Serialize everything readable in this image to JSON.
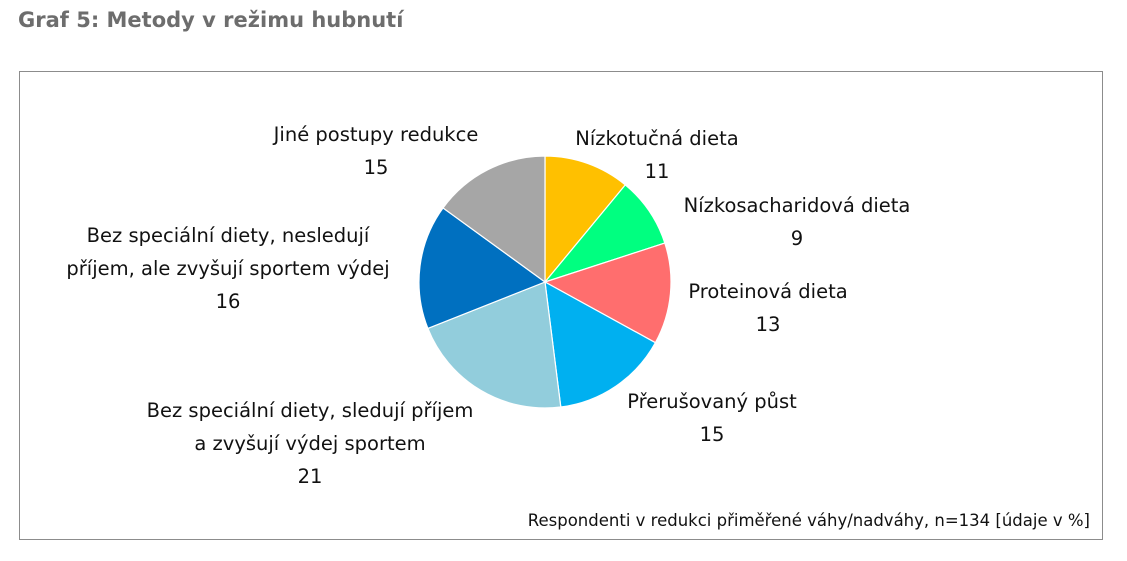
{
  "heading": "Graf 5: Metody v režimu hubnutí",
  "footnote": "Respondenti v redukci přiměřené váhy/nadváhy, n=134 [údaje v %]",
  "chart_data": {
    "type": "pie",
    "slices": [
      {
        "label_lines": [
          "Nízkotučná dieta"
        ],
        "value": 11,
        "color": "#FFC000"
      },
      {
        "label_lines": [
          "Nízkosacharidová dieta"
        ],
        "value": 9,
        "color": "#00FF80"
      },
      {
        "label_lines": [
          "Proteinová dieta"
        ],
        "value": 13,
        "color": "#FF6E6E"
      },
      {
        "label_lines": [
          "Přerušovaný půst"
        ],
        "value": 15,
        "color": "#00B0F0"
      },
      {
        "label_lines": [
          "Bez speciální diety, sledují příjem",
          "a zvyšují výdej sportem"
        ],
        "value": 21,
        "color": "#92CDDC"
      },
      {
        "label_lines": [
          "Bez speciální diety, nesledují",
          "příjem, ale zvyšují sportem výdej"
        ],
        "value": 16,
        "color": "#0070C0"
      },
      {
        "label_lines": [
          "Jiné postupy redukce"
        ],
        "value": 15,
        "color": "#A6A6A6"
      }
    ]
  }
}
